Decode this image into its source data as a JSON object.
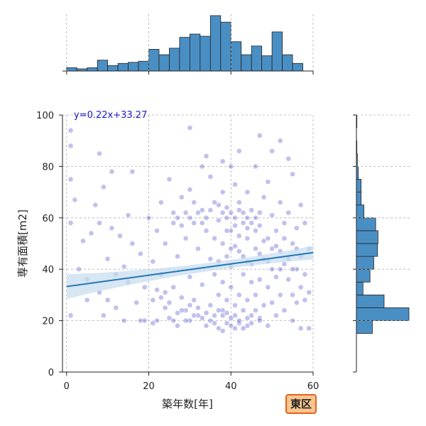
{
  "chart_data": {
    "type": "scatter",
    "title": "",
    "xlabel": "築年数[年]",
    "ylabel": "専有面積[m2]",
    "xlim": [
      -1,
      60
    ],
    "ylim": [
      0,
      100
    ],
    "xticks": [
      0,
      20,
      40,
      60
    ],
    "yticks": [
      0,
      20,
      40,
      60,
      80,
      100
    ],
    "grid": true,
    "regression": {
      "label": "y=0.22x+33.27",
      "slope": 0.22,
      "intercept": 33.27,
      "color": "#1f77b4"
    },
    "point_color": "#2020c0",
    "hist_color": "#4a8fc4",
    "x_histogram": {
      "bin_width": 2.5,
      "bin_start": 0,
      "counts": [
        3,
        2,
        3,
        10,
        5,
        7,
        8,
        9,
        20,
        15,
        21,
        31,
        34,
        32,
        51,
        45,
        27,
        15,
        23,
        14,
        36,
        15,
        7
      ]
    },
    "y_histogram": {
      "bin_width": 5,
      "bin_start": 15,
      "counts": [
        34,
        112,
        59,
        14,
        29,
        37,
        45,
        46,
        41,
        16,
        10,
        10,
        4,
        2,
        1,
        0,
        1
      ]
    },
    "points": [
      [
        1,
        94
      ],
      [
        1,
        88
      ],
      [
        1,
        75
      ],
      [
        2,
        67
      ],
      [
        1,
        58
      ],
      [
        1,
        22
      ],
      [
        3,
        40
      ],
      [
        4,
        51
      ],
      [
        5,
        36
      ],
      [
        5,
        28
      ],
      [
        6,
        54
      ],
      [
        7,
        65
      ],
      [
        8,
        85
      ],
      [
        8,
        58
      ],
      [
        8,
        31
      ],
      [
        9,
        72
      ],
      [
        9,
        22
      ],
      [
        10,
        44
      ],
      [
        10,
        28
      ],
      [
        11,
        78
      ],
      [
        11,
        56
      ],
      [
        12,
        38
      ],
      [
        12,
        25
      ],
      [
        13,
        53
      ],
      [
        14,
        41
      ],
      [
        14,
        20
      ],
      [
        15,
        61
      ],
      [
        15,
        35
      ],
      [
        16,
        78
      ],
      [
        16,
        50
      ],
      [
        17,
        27
      ],
      [
        18,
        46
      ],
      [
        18,
        20
      ],
      [
        19,
        33
      ],
      [
        19,
        20
      ],
      [
        20,
        60
      ],
      [
        21,
        19
      ],
      [
        21,
        28
      ],
      [
        21,
        43
      ],
      [
        22,
        32
      ],
      [
        22,
        55
      ],
      [
        23,
        38
      ],
      [
        23,
        66
      ],
      [
        24,
        25
      ],
      [
        24,
        50
      ],
      [
        25,
        75
      ],
      [
        25,
        21
      ],
      [
        26,
        62
      ],
      [
        26,
        33
      ],
      [
        27,
        45
      ],
      [
        27,
        18
      ],
      [
        28,
        68
      ],
      [
        28,
        29
      ],
      [
        29,
        52
      ],
      [
        29,
        24
      ],
      [
        30,
        95
      ],
      [
        30,
        71
      ],
      [
        30,
        37
      ],
      [
        30,
        20
      ],
      [
        31,
        58
      ],
      [
        31,
        28
      ],
      [
        32,
        48
      ],
      [
        32,
        22
      ],
      [
        33,
        80
      ],
      [
        33,
        63
      ],
      [
        33,
        34
      ],
      [
        34,
        84
      ],
      [
        34,
        55
      ],
      [
        34,
        18
      ],
      [
        35,
        76
      ],
      [
        35,
        44
      ],
      [
        35,
        26
      ],
      [
        36,
        66
      ],
      [
        36,
        38
      ],
      [
        36,
        22
      ],
      [
        37,
        59
      ],
      [
        37,
        30
      ],
      [
        37,
        17
      ],
      [
        38,
        82
      ],
      [
        38,
        70
      ],
      [
        38,
        50
      ],
      [
        38,
        35
      ],
      [
        38,
        24
      ],
      [
        38,
        16
      ],
      [
        39,
        64
      ],
      [
        39,
        45
      ],
      [
        39,
        28
      ],
      [
        39,
        19
      ],
      [
        40,
        80
      ],
      [
        40,
        62
      ],
      [
        40,
        55
      ],
      [
        40,
        41
      ],
      [
        40,
        33
      ],
      [
        40,
        21
      ],
      [
        41,
        73
      ],
      [
        41,
        49
      ],
      [
        41,
        26
      ],
      [
        41,
        17
      ],
      [
        42,
        86
      ],
      [
        42,
        66
      ],
      [
        42,
        47
      ],
      [
        42,
        30
      ],
      [
        42,
        19
      ],
      [
        43,
        58
      ],
      [
        43,
        38
      ],
      [
        43,
        24
      ],
      [
        44,
        70
      ],
      [
        44,
        52
      ],
      [
        44,
        43
      ],
      [
        44,
        28
      ],
      [
        44,
        18
      ],
      [
        45,
        63
      ],
      [
        45,
        35
      ],
      [
        45,
        22
      ],
      [
        46,
        80
      ],
      [
        46,
        48
      ],
      [
        46,
        30
      ],
      [
        47,
        92
      ],
      [
        47,
        57
      ],
      [
        47,
        36
      ],
      [
        47,
        21
      ],
      [
        48,
        68
      ],
      [
        48,
        44
      ],
      [
        48,
        26
      ],
      [
        49,
        74
      ],
      [
        49,
        52
      ],
      [
        49,
        33
      ],
      [
        49,
        18
      ],
      [
        50,
        86
      ],
      [
        50,
        61
      ],
      [
        50,
        40
      ],
      [
        50,
        27
      ],
      [
        51,
        55
      ],
      [
        51,
        37
      ],
      [
        51,
        22
      ],
      [
        52,
        90
      ],
      [
        52,
        66
      ],
      [
        52,
        47
      ],
      [
        52,
        30
      ],
      [
        53,
        58
      ],
      [
        53,
        42
      ],
      [
        53,
        24
      ],
      [
        54,
        83
      ],
      [
        54,
        62
      ],
      [
        54,
        36
      ],
      [
        55,
        77
      ],
      [
        55,
        50
      ],
      [
        55,
        30
      ],
      [
        55,
        20
      ],
      [
        56,
        56
      ],
      [
        56,
        40
      ],
      [
        56,
        27
      ],
      [
        57,
        65
      ],
      [
        57,
        45
      ],
      [
        57,
        33
      ],
      [
        57,
        17
      ],
      [
        58,
        58
      ],
      [
        58,
        38
      ],
      [
        58,
        28
      ],
      [
        59,
        48
      ],
      [
        59,
        31
      ],
      [
        59,
        17
      ],
      [
        36,
        52
      ],
      [
        37,
        43
      ],
      [
        39,
        55
      ],
      [
        40,
        48
      ],
      [
        41,
        60
      ],
      [
        42,
        53
      ],
      [
        43,
        45
      ],
      [
        44,
        60
      ],
      [
        45,
        42
      ],
      [
        46,
        55
      ],
      [
        47,
        46
      ],
      [
        48,
        51
      ],
      [
        49,
        43
      ],
      [
        50,
        48
      ],
      [
        51,
        49
      ],
      [
        52,
        40
      ],
      [
        53,
        52
      ],
      [
        54,
        44
      ],
      [
        55,
        40
      ],
      [
        56,
        48
      ],
      [
        38,
        22
      ],
      [
        39,
        23
      ],
      [
        40,
        18
      ],
      [
        41,
        22
      ],
      [
        42,
        20
      ],
      [
        43,
        17
      ],
      [
        44,
        21
      ],
      [
        45,
        19
      ],
      [
        46,
        24
      ],
      [
        47,
        20
      ],
      [
        36,
        19
      ],
      [
        37,
        24
      ],
      [
        35,
        20
      ],
      [
        34,
        23
      ],
      [
        33,
        21
      ],
      [
        32,
        25
      ],
      [
        31,
        22
      ],
      [
        30,
        26
      ],
      [
        29,
        20
      ],
      [
        28,
        24
      ],
      [
        27,
        23
      ],
      [
        26,
        20
      ],
      [
        25,
        27
      ],
      [
        24,
        31
      ],
      [
        23,
        29
      ],
      [
        22,
        20
      ],
      [
        37,
        65
      ],
      [
        38,
        62
      ],
      [
        39,
        60
      ],
      [
        41,
        57
      ],
      [
        42,
        63
      ],
      [
        43,
        62
      ],
      [
        44,
        56
      ],
      [
        45,
        58
      ],
      [
        46,
        60
      ],
      [
        47,
        62
      ],
      [
        35,
        63
      ],
      [
        34,
        60
      ],
      [
        33,
        58
      ],
      [
        32,
        62
      ],
      [
        31,
        66
      ],
      [
        30,
        60
      ],
      [
        29,
        62
      ],
      [
        28,
        57
      ],
      [
        27,
        60
      ],
      [
        26,
        58
      ]
    ]
  },
  "badge": {
    "label": "東区",
    "bg": "#f9c68f",
    "border": "#e8601c"
  }
}
